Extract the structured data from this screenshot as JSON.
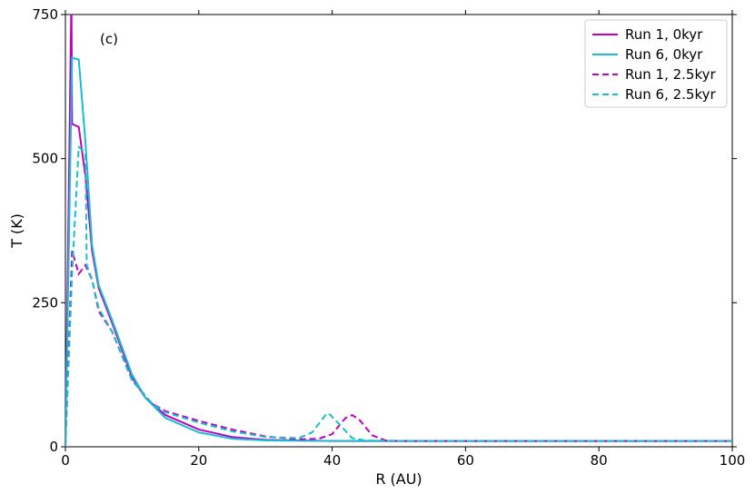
{
  "chart_data": {
    "type": "line",
    "xlabel": "R (AU)",
    "ylabel": "T (K)",
    "annotation": "(c)",
    "xlim": [
      0,
      100
    ],
    "ylim": [
      0,
      750
    ],
    "xticks": [
      0,
      20,
      40,
      60,
      80,
      100
    ],
    "yticks": [
      0,
      250,
      500,
      750
    ],
    "legend": "upper right",
    "series": [
      {
        "name": "Run 1, 0kyr",
        "color": "#c000c0",
        "linestyle": "solid",
        "x": [
          0,
          0.9,
          1,
          2,
          3,
          4,
          5,
          7,
          10,
          12,
          15,
          20,
          25,
          30,
          40,
          100
        ],
        "values": [
          0,
          780,
          560,
          555,
          470,
          340,
          275,
          215,
          120,
          85,
          55,
          30,
          17,
          12,
          10,
          10
        ]
      },
      {
        "name": "Run 6, 0kyr",
        "color": "#17becf",
        "linestyle": "solid",
        "x": [
          0,
          1,
          2,
          3,
          4,
          5,
          7,
          10,
          12,
          15,
          20,
          25,
          30,
          40,
          100
        ],
        "values": [
          0,
          675,
          672,
          530,
          350,
          280,
          220,
          125,
          85,
          50,
          25,
          14,
          11,
          10,
          10
        ]
      },
      {
        "name": "Run 1, 2.5kyr",
        "color": "#c000c0",
        "linestyle": "dashed",
        "x": [
          0,
          1,
          2,
          3,
          4,
          5,
          7,
          10,
          13,
          15,
          20,
          25,
          30,
          35,
          38,
          40,
          42,
          43,
          44,
          46,
          48,
          50,
          100
        ],
        "values": [
          0,
          340,
          300,
          315,
          290,
          235,
          200,
          115,
          75,
          62,
          45,
          30,
          18,
          13,
          14,
          22,
          50,
          55,
          48,
          20,
          11,
          10,
          10
        ]
      },
      {
        "name": "Run 6, 2.5kyr",
        "color": "#17becf",
        "linestyle": "dashed",
        "x": [
          0,
          1,
          2,
          3,
          3.2,
          4,
          5,
          7,
          10,
          13,
          15,
          20,
          25,
          30,
          35,
          37,
          39,
          39.5,
          41,
          43,
          45,
          50,
          100
        ],
        "values": [
          0,
          300,
          520,
          510,
          315,
          290,
          240,
          200,
          115,
          75,
          60,
          42,
          27,
          17,
          15,
          25,
          55,
          58,
          40,
          15,
          11,
          10,
          10
        ]
      }
    ]
  }
}
